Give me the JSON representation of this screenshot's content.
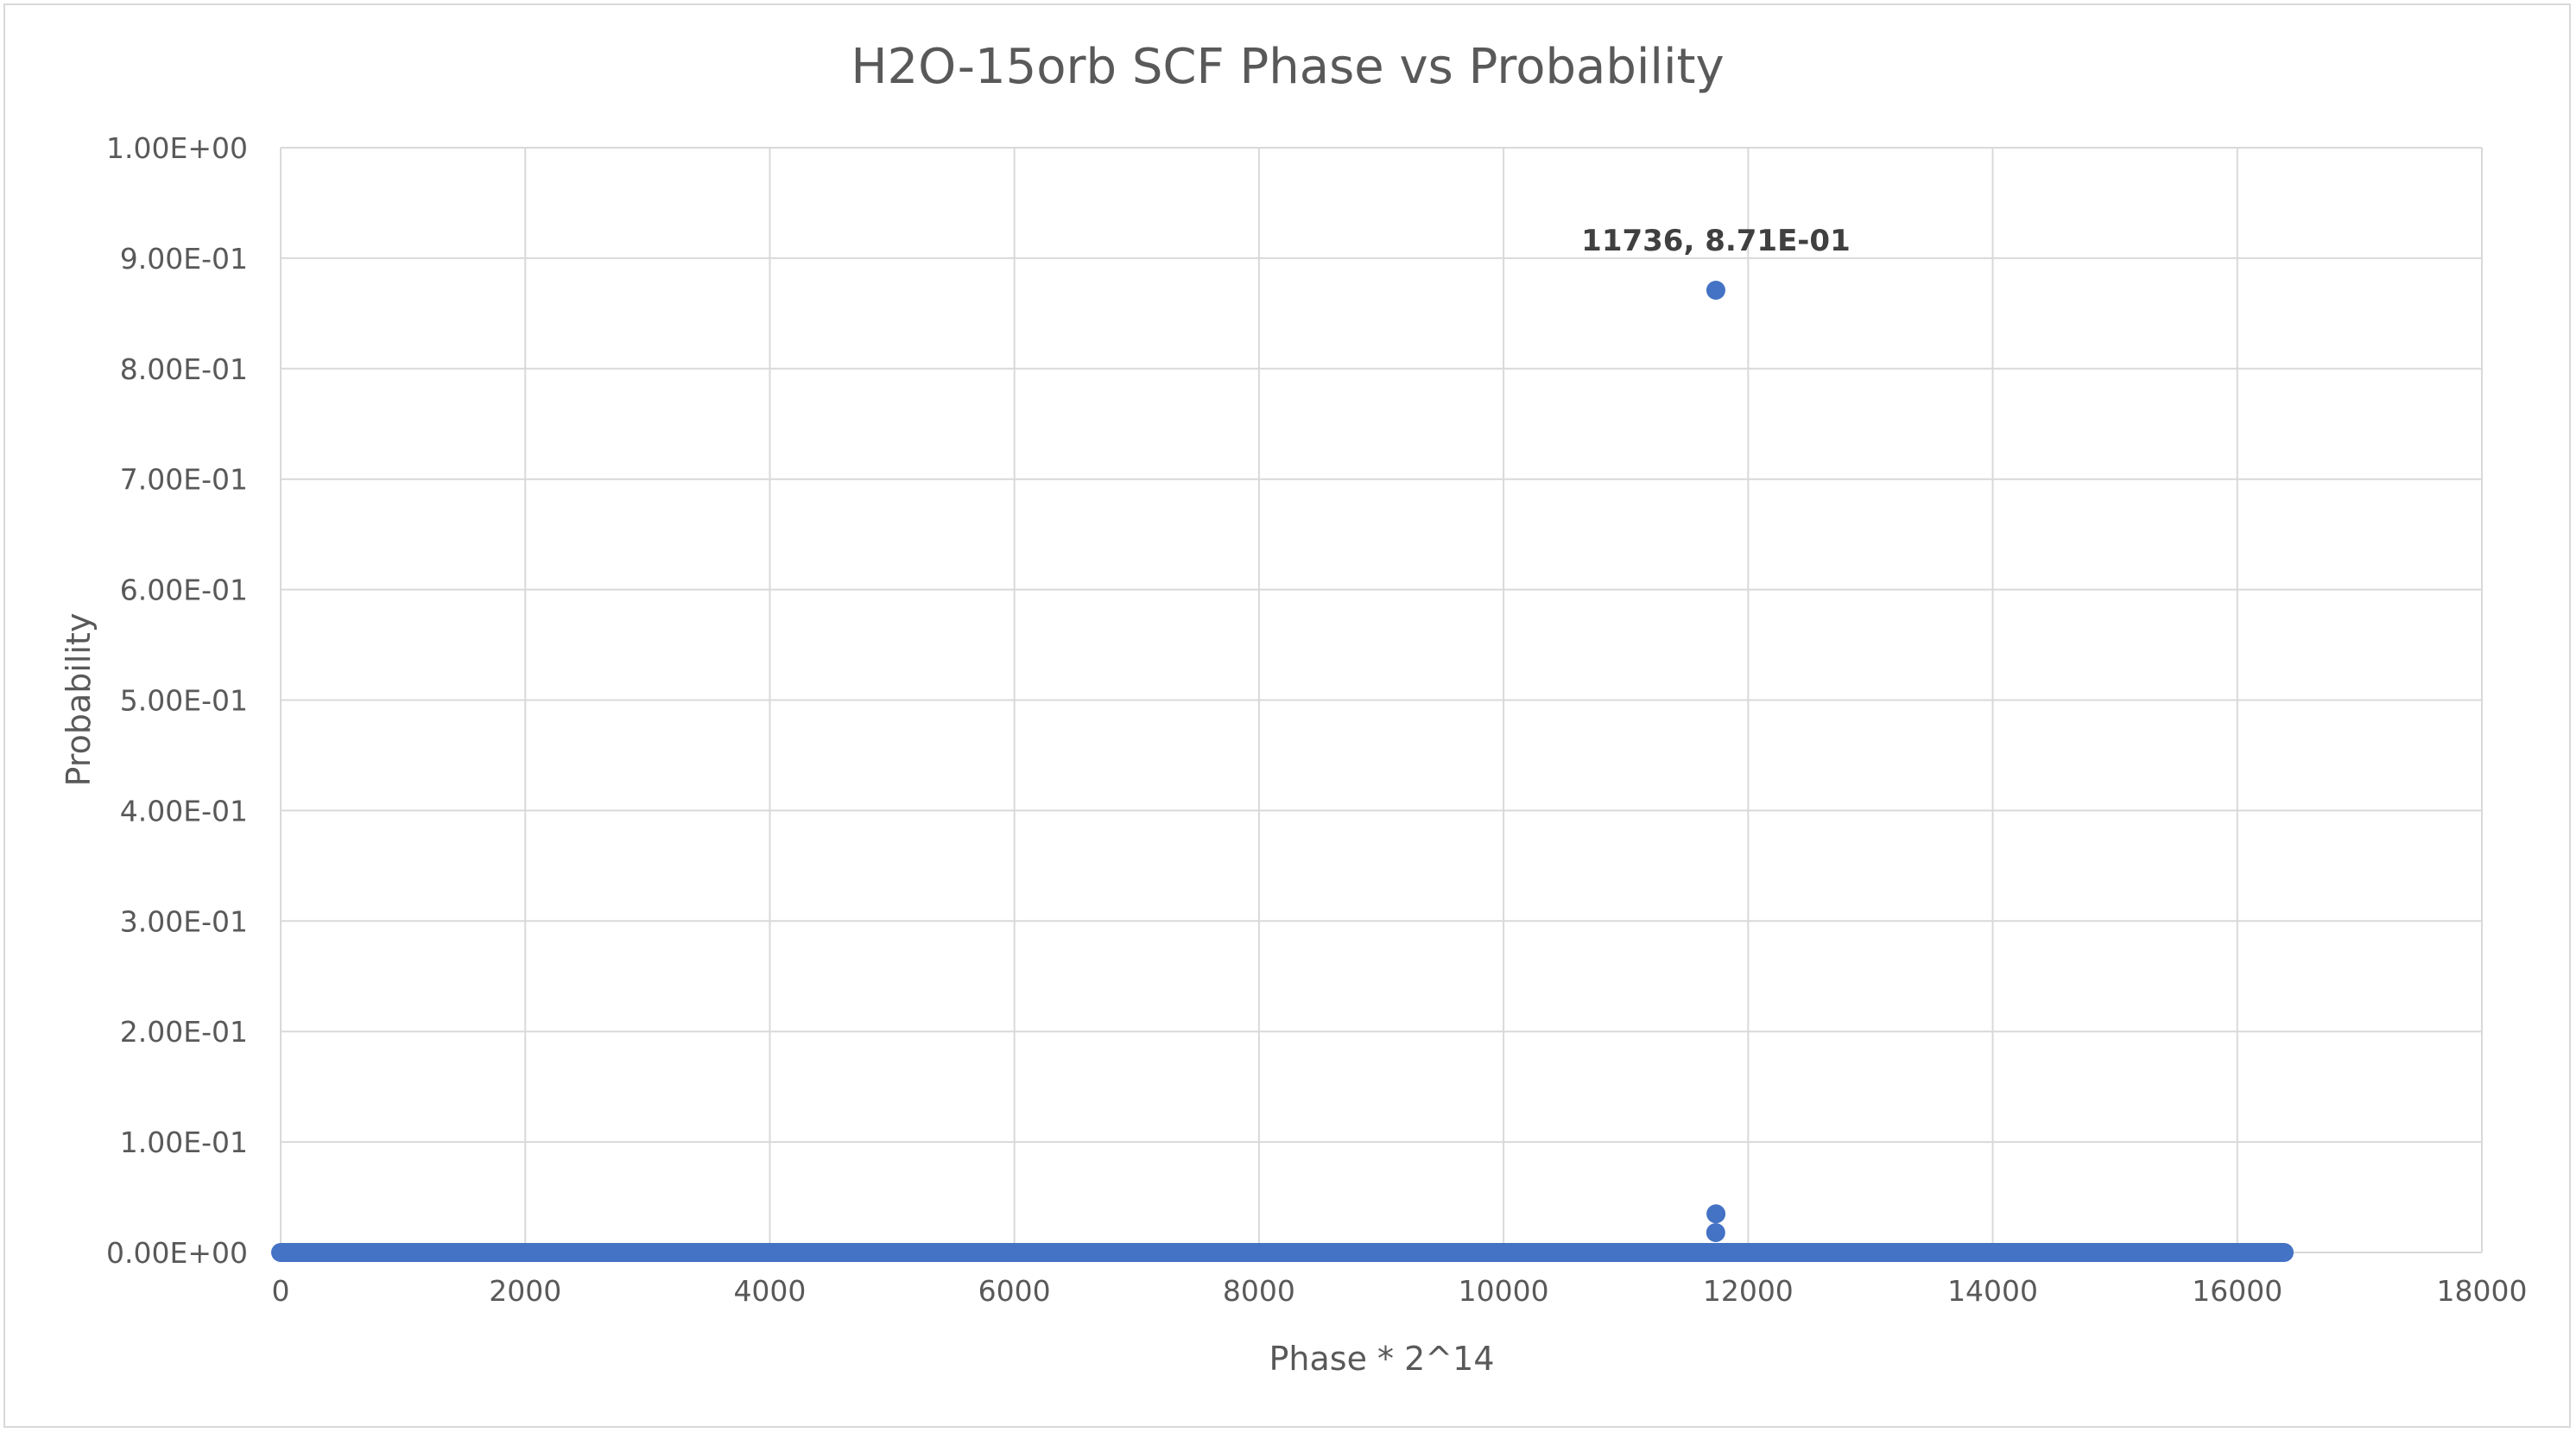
{
  "chart_data": {
    "type": "scatter",
    "title": "H2O-15orb SCF Phase vs Probability",
    "xlabel": "Phase * 2^14",
    "ylabel": "Probability",
    "xlim": [
      0,
      18000
    ],
    "ylim": [
      0,
      1
    ],
    "x_ticks": [
      0,
      2000,
      4000,
      6000,
      8000,
      10000,
      12000,
      14000,
      16000,
      18000
    ],
    "x_tick_labels": [
      "0",
      "2000",
      "4000",
      "6000",
      "8000",
      "10000",
      "12000",
      "14000",
      "16000",
      "18000"
    ],
    "y_ticks": [
      0,
      0.1,
      0.2,
      0.3,
      0.4,
      0.5,
      0.6,
      0.7,
      0.8,
      0.9,
      1.0
    ],
    "y_tick_labels": [
      "0.00E+00",
      "1.00E-01",
      "2.00E-01",
      "3.00E-01",
      "4.00E-01",
      "5.00E-01",
      "6.00E-01",
      "7.00E-01",
      "8.00E-01",
      "9.00E-01",
      "1.00E+00"
    ],
    "grid": true,
    "legend": "none",
    "marker_color": "#4472C4",
    "series": [
      {
        "values": "dense points at probability ≈ 0 for every phase from 0 to 16383",
        "x_range": [
          0,
          16383
        ],
        "baseline_y": 0,
        "points": [
          {
            "x": 11736,
            "y": 0.871
          },
          {
            "x": 11737,
            "y": 0.035
          },
          {
            "x": 11735,
            "y": 0.018
          }
        ]
      }
    ],
    "annotations": [
      {
        "text": "11736, 8.71E-01",
        "x": 11736,
        "y": 0.871
      }
    ]
  }
}
